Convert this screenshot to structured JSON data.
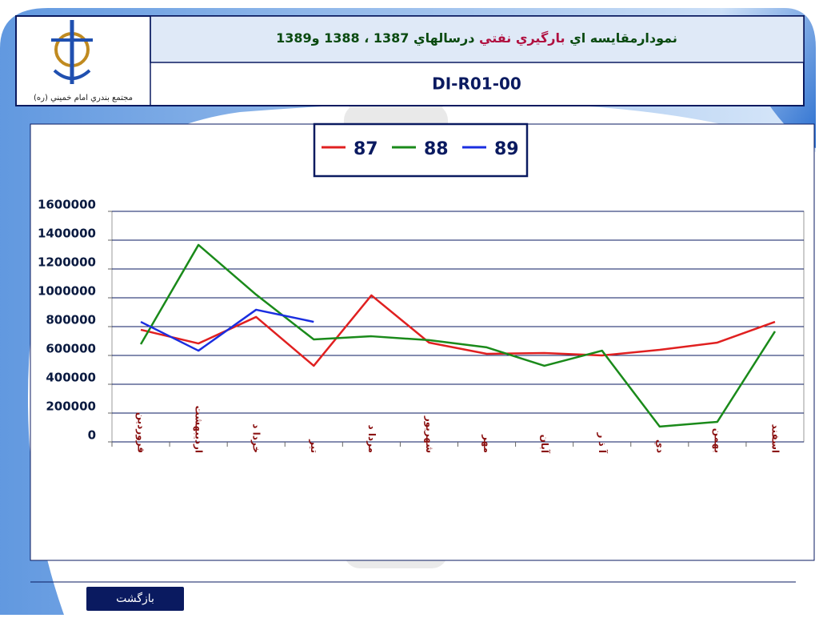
{
  "header": {
    "title_parts": [
      "نمودارمقايسه اي",
      "بارگيري نفتي",
      "درسالهاي 1387 ، 1388 و1389"
    ],
    "code": "DI-R01-00",
    "logo_caption": "مجتمع بندري امام خميني (ره)"
  },
  "chart_data": {
    "type": "line",
    "categories": [
      "فروردين",
      "ارديبهشت",
      "خردا د",
      "تير",
      "مردا د",
      "شهريور",
      "مهر",
      "آبان",
      "آ ذ ر",
      "دي",
      "بهمن",
      "اسفند"
    ],
    "series": [
      {
        "name": "87",
        "color": "#e02020",
        "values": [
          778000,
          683000,
          867000,
          528000,
          1017000,
          689000,
          611000,
          617000,
          600000,
          639000,
          689000,
          833000
        ]
      },
      {
        "name": "88",
        "color": "#1a8a1a",
        "values": [
          678000,
          1367000,
          1022000,
          711000,
          733000,
          706000,
          656000,
          528000,
          633000,
          106000,
          139000,
          767000
        ]
      },
      {
        "name": "89",
        "color": "#1a2ee0",
        "values": [
          833000,
          633000,
          917000,
          833000,
          null,
          null,
          null,
          null,
          null,
          null,
          null,
          null
        ]
      }
    ],
    "ylim": [
      0,
      1600000
    ],
    "yticks": [
      0,
      200000,
      400000,
      600000,
      800000,
      1000000,
      1200000,
      1400000,
      1600000
    ],
    "grid": true,
    "legend": "top"
  },
  "footer": {
    "button": "بازگشت"
  }
}
